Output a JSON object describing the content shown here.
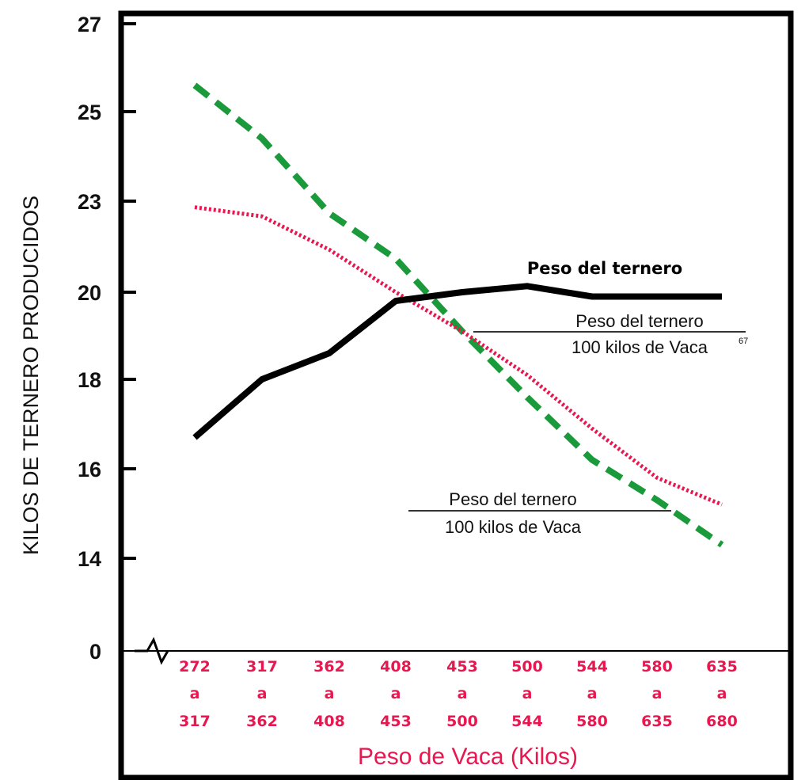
{
  "chart_data": {
    "type": "line",
    "ylabel": "KILOS DE TERNERO PRODUCIDOS",
    "xlabel": "Peso de Vaca (Kilos)",
    "y_ticks": [
      "27",
      "25",
      "23",
      "20",
      "18",
      "16",
      "14",
      "0"
    ],
    "y_axis_break": true,
    "grid": false,
    "categories": [
      {
        "from": "272",
        "sep": "a",
        "to": "317"
      },
      {
        "from": "317",
        "sep": "a",
        "to": "362"
      },
      {
        "from": "362",
        "sep": "a",
        "to": "408"
      },
      {
        "from": "408",
        "sep": "a",
        "to": "453"
      },
      {
        "from": "453",
        "sep": "a",
        "to": "500"
      },
      {
        "from": "500",
        "sep": "a",
        "to": "544"
      },
      {
        "from": "544",
        "sep": "a",
        "to": "580"
      },
      {
        "from": "580",
        "sep": "a",
        "to": "635"
      },
      {
        "from": "635",
        "sep": "a",
        "to": "680"
      }
    ],
    "series": [
      {
        "label_top": "Peso del ternero",
        "color": "#000000",
        "style": "solid",
        "values": [
          16.7,
          18.0,
          18.6,
          19.8,
          20.0,
          20.2,
          19.9,
          19.9,
          19.9
        ]
      },
      {
        "label_top": "Peso del ternero",
        "label_bottom": "100 kilos de Vaca",
        "label_sup": "67",
        "color": "#e8174f",
        "style": "dotted",
        "values": [
          22.8,
          22.5,
          21.4,
          20.0,
          19.1,
          18.1,
          16.9,
          15.8,
          15.2
        ]
      },
      {
        "label_top": "Peso del ternero",
        "label_bottom": "100 kilos de Vaca",
        "color": "#1a9a3a",
        "style": "dashed",
        "values": [
          25.6,
          24.4,
          22.6,
          21.1,
          19.1,
          17.6,
          16.2,
          15.3,
          14.3
        ]
      }
    ]
  }
}
